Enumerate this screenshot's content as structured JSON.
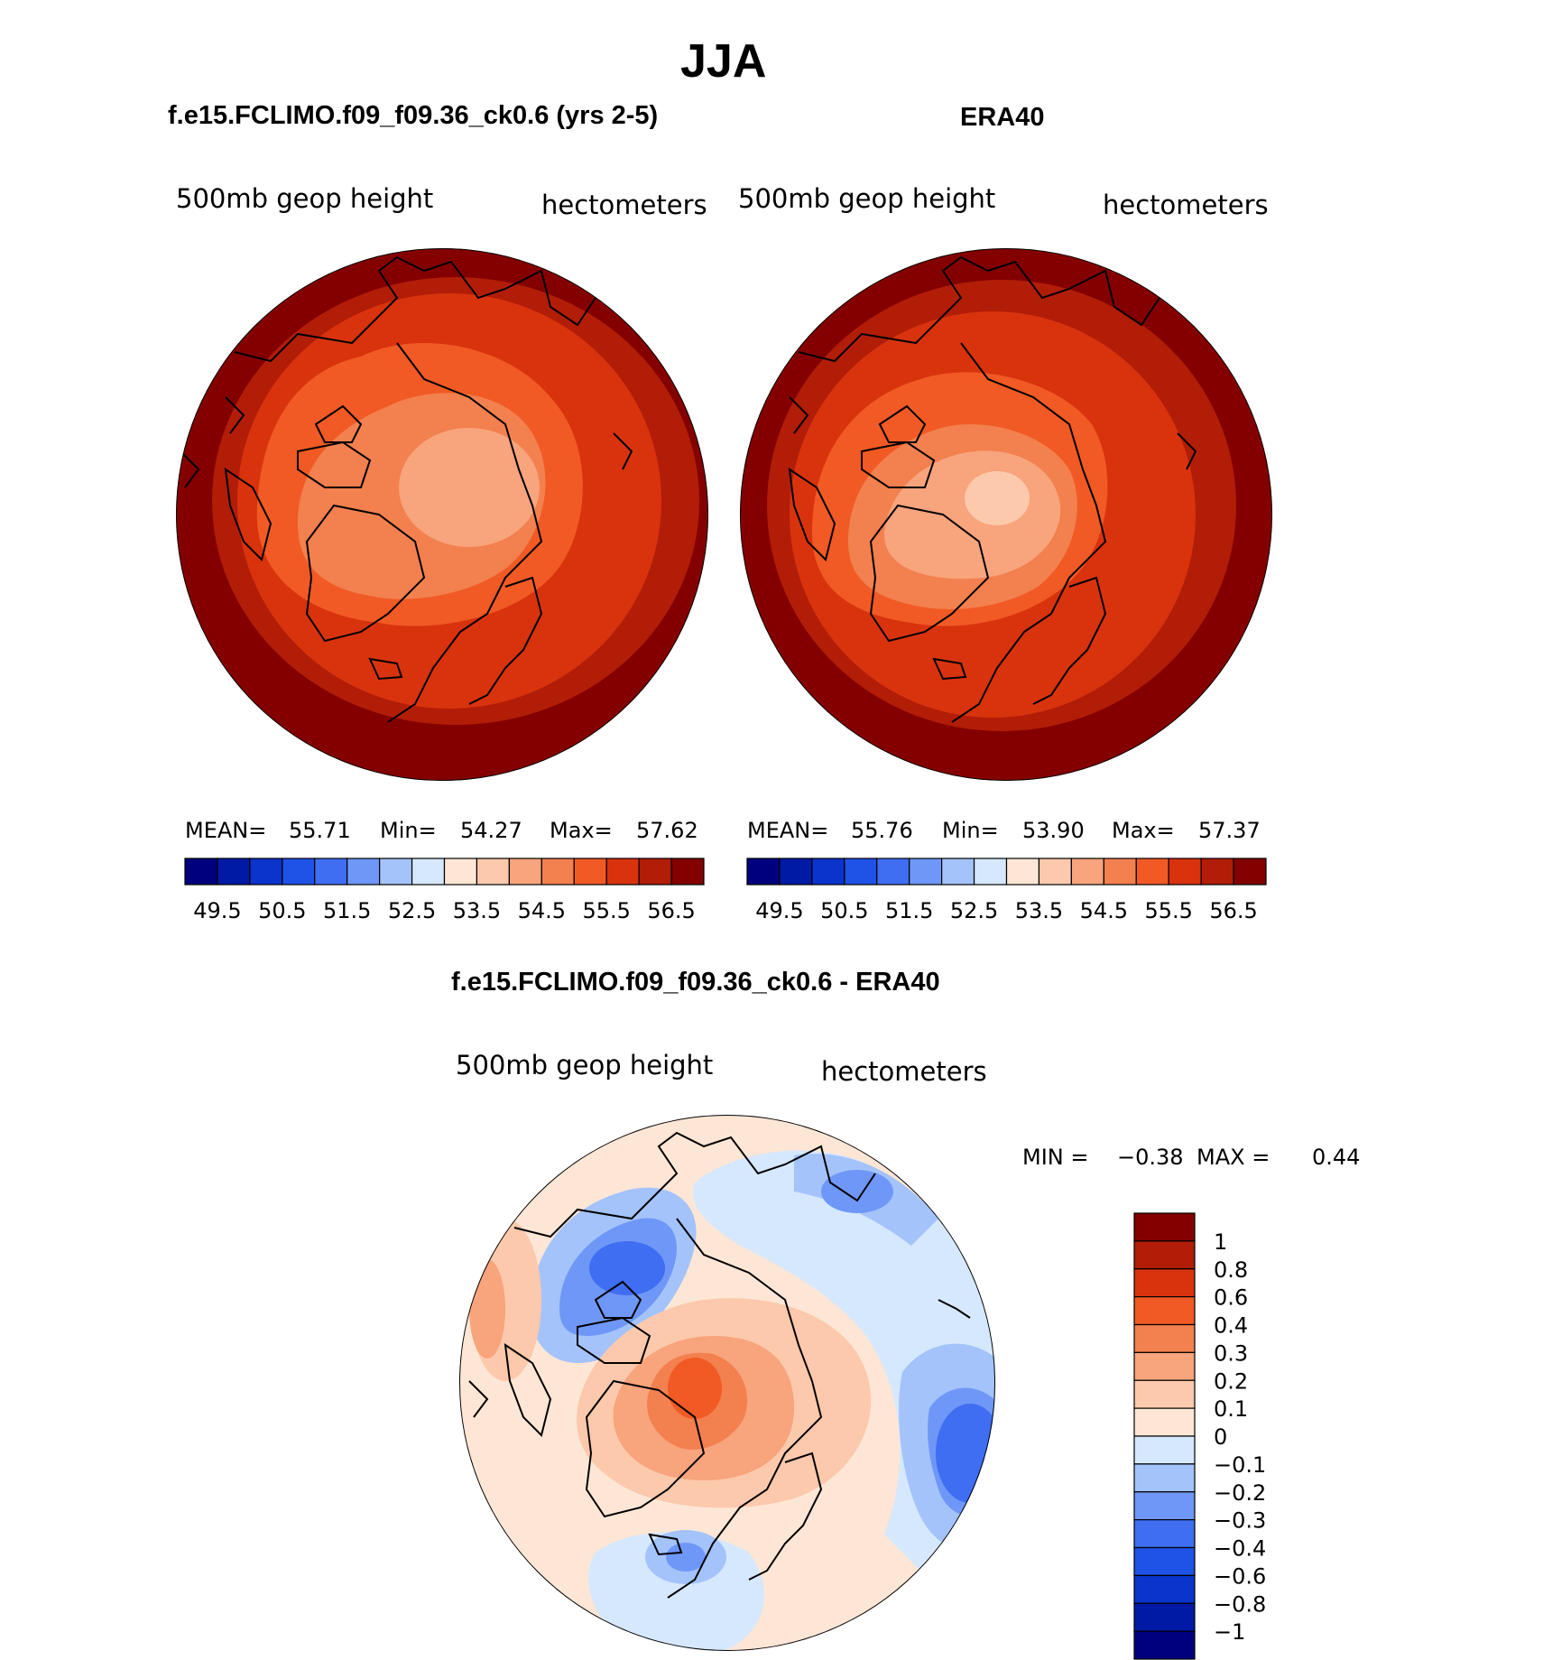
{
  "title": "JJA",
  "panels": {
    "model": {
      "title": "f.e15.FCLIMO.f09_f09.36_ck0.6 (yrs 2-5)",
      "field": "500mb  geop  height",
      "units": "hectometers",
      "mean_label": "MEAN=",
      "mean_value": "55.71",
      "min_label": "Min=",
      "min_value": "54.27",
      "max_label": "Max=",
      "max_value": "57.62"
    },
    "obs": {
      "title": "ERA40",
      "field": "500mb  geop  height",
      "units": "hectometers",
      "mean_label": "MEAN=",
      "mean_value": "55.76",
      "min_label": "Min=",
      "min_value": "53.90",
      "max_label": "Max=",
      "max_value": "57.37"
    },
    "diff": {
      "title": "f.e15.FCLIMO.f09_f09.36_ck0.6 - ERA40",
      "field": "500mb  geop  height",
      "units": "hectometers",
      "min_label": "MIN =",
      "min_value": "−0.38",
      "max_label": "MAX =",
      "max_value": "0.44"
    }
  },
  "abs_colorbar": {
    "colors": [
      "#00007f",
      "#001aa6",
      "#0a34cc",
      "#1f52e6",
      "#3f6ef2",
      "#6f97f7",
      "#a4c3fb",
      "#d6e8fd",
      "#fde6d5",
      "#fcc9ac",
      "#f8a47c",
      "#f3804f",
      "#f15a24",
      "#d9330e",
      "#b21d08",
      "#840000"
    ],
    "tick_labels": [
      "49.5",
      "50.5",
      "51.5",
      "52.5",
      "53.5",
      "54.5",
      "55.5",
      "56.5"
    ]
  },
  "diff_colorbar": {
    "colors": [
      "#840000",
      "#b21d08",
      "#d9330e",
      "#f15a24",
      "#f3804f",
      "#f8a47c",
      "#fcc9ac",
      "#fde6d5",
      "#d6e8fd",
      "#a4c3fb",
      "#6f97f7",
      "#3f6ef2",
      "#1f52e6",
      "#0a34cc",
      "#001aa6",
      "#00007f"
    ],
    "tick_labels": [
      "1",
      "0.8",
      "0.6",
      "0.4",
      "0.3",
      "0.2",
      "0.1",
      "0",
      "−0.1",
      "−0.2",
      "−0.3",
      "−0.4",
      "−0.6",
      "−0.8",
      "−1"
    ]
  },
  "map_fills": {
    "model_rings": [
      "#840000",
      "#b21d08",
      "#d9330e",
      "#f15a24",
      "#f3804f",
      "#f8a47c"
    ],
    "obs_rings": [
      "#840000",
      "#b21d08",
      "#d9330e",
      "#f15a24",
      "#f3804f",
      "#f8a47c",
      "#fcc9ac"
    ],
    "diff_background": "#fde6d5"
  }
}
